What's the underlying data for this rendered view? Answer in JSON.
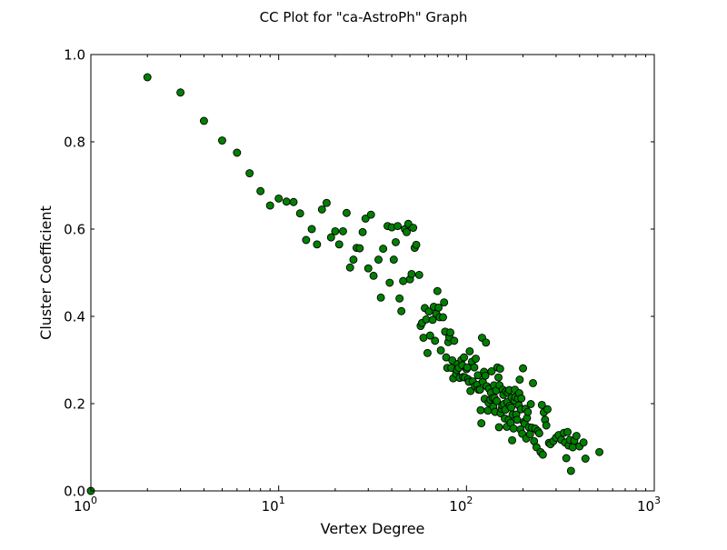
{
  "chart_data": {
    "type": "scatter",
    "title": "CC Plot for \"ca-AstroPh\" Graph",
    "xlabel": "Vertex Degree",
    "ylabel": "Cluster Coefficient",
    "x_scale": "log",
    "xlim": [
      1,
      1000
    ],
    "ylim": [
      0.0,
      1.0
    ],
    "x_ticks": [
      {
        "value": 1,
        "base": "10",
        "exp": "0"
      },
      {
        "value": 10,
        "base": "10",
        "exp": "1"
      },
      {
        "value": 100,
        "base": "10",
        "exp": "2"
      },
      {
        "value": 1000,
        "base": "10",
        "exp": "3"
      }
    ],
    "y_ticks": [
      {
        "value": 0.0,
        "label": "0.0"
      },
      {
        "value": 0.2,
        "label": "0.2"
      },
      {
        "value": 0.4,
        "label": "0.4"
      },
      {
        "value": 0.6,
        "label": "0.6"
      },
      {
        "value": 0.8,
        "label": "0.8"
      },
      {
        "value": 1.0,
        "label": "1.0"
      }
    ],
    "grid": false,
    "marker_color": "#008000",
    "marker_edge_color": "#000000",
    "points": [
      [
        1,
        0.0
      ],
      [
        2,
        0.948
      ],
      [
        3,
        0.913
      ],
      [
        4,
        0.848
      ],
      [
        5,
        0.803
      ],
      [
        6,
        0.775
      ],
      [
        7,
        0.728
      ],
      [
        8,
        0.687
      ],
      [
        9,
        0.654
      ],
      [
        10,
        0.67
      ],
      [
        11,
        0.663
      ],
      [
        12,
        0.662
      ],
      [
        13,
        0.636
      ],
      [
        14,
        0.575
      ],
      [
        15,
        0.6
      ],
      [
        16,
        0.565
      ],
      [
        17,
        0.645
      ],
      [
        18,
        0.66
      ],
      [
        19,
        0.581
      ],
      [
        20,
        0.595
      ],
      [
        21,
        0.565
      ],
      [
        22,
        0.595
      ],
      [
        23,
        0.637
      ],
      [
        24,
        0.512
      ],
      [
        25,
        0.53
      ],
      [
        26,
        0.557
      ],
      [
        27,
        0.556
      ],
      [
        28,
        0.593
      ],
      [
        29,
        0.624
      ],
      [
        30,
        0.51
      ],
      [
        31,
        0.633
      ],
      [
        32,
        0.493
      ],
      [
        34,
        0.53
      ],
      [
        35,
        0.443
      ],
      [
        36,
        0.555
      ],
      [
        38,
        0.607
      ],
      [
        39,
        0.477
      ],
      [
        40,
        0.604
      ],
      [
        41,
        0.53
      ],
      [
        42,
        0.57
      ],
      [
        43,
        0.607
      ],
      [
        44,
        0.441
      ],
      [
        45,
        0.412
      ],
      [
        46,
        0.481
      ],
      [
        47,
        0.6
      ],
      [
        48,
        0.593
      ],
      [
        49,
        0.612
      ],
      [
        50,
        0.485
      ],
      [
        51,
        0.497
      ],
      [
        52,
        0.603
      ],
      [
        53,
        0.557
      ],
      [
        54,
        0.564
      ],
      [
        56,
        0.495
      ],
      [
        57,
        0.378
      ],
      [
        58,
        0.385
      ],
      [
        59,
        0.351
      ],
      [
        60,
        0.419
      ],
      [
        61,
        0.393
      ],
      [
        62,
        0.316
      ],
      [
        63,
        0.411
      ],
      [
        64,
        0.356
      ],
      [
        66,
        0.392
      ],
      [
        67,
        0.422
      ],
      [
        68,
        0.344
      ],
      [
        69,
        0.406
      ],
      [
        70,
        0.458
      ],
      [
        71,
        0.42
      ],
      [
        72,
        0.398
      ],
      [
        73,
        0.322
      ],
      [
        75,
        0.398
      ],
      [
        76,
        0.432
      ],
      [
        77,
        0.365
      ],
      [
        78,
        0.306
      ],
      [
        79,
        0.282
      ],
      [
        80,
        0.341
      ],
      [
        81,
        0.352
      ],
      [
        82,
        0.363
      ],
      [
        83,
        0.282
      ],
      [
        84,
        0.299
      ],
      [
        85,
        0.258
      ],
      [
        86,
        0.344
      ],
      [
        88,
        0.268
      ],
      [
        89,
        0.277
      ],
      [
        90,
        0.291
      ],
      [
        91,
        0.282
      ],
      [
        92,
        0.259
      ],
      [
        94,
        0.3
      ],
      [
        95,
        0.288
      ],
      [
        96,
        0.261
      ],
      [
        97,
        0.306
      ],
      [
        98,
        0.26
      ],
      [
        100,
        0.279
      ],
      [
        101,
        0.283
      ],
      [
        102,
        0.256
      ],
      [
        103,
        0.25
      ],
      [
        104,
        0.32
      ],
      [
        105,
        0.229
      ],
      [
        107,
        0.296
      ],
      [
        108,
        0.251
      ],
      [
        110,
        0.283
      ],
      [
        111,
        0.24
      ],
      [
        112,
        0.303
      ],
      [
        114,
        0.243
      ],
      [
        115,
        0.265
      ],
      [
        116,
        0.232
      ],
      [
        118,
        0.232
      ],
      [
        119,
        0.185
      ],
      [
        120,
        0.155
      ],
      [
        121,
        0.351
      ],
      [
        122,
        0.25
      ],
      [
        124,
        0.273
      ],
      [
        125,
        0.211
      ],
      [
        126,
        0.264
      ],
      [
        127,
        0.34
      ],
      [
        128,
        0.24
      ],
      [
        130,
        0.184
      ],
      [
        131,
        0.202
      ],
      [
        132,
        0.234
      ],
      [
        134,
        0.209
      ],
      [
        135,
        0.225
      ],
      [
        136,
        0.274
      ],
      [
        138,
        0.213
      ],
      [
        139,
        0.193
      ],
      [
        140,
        0.242
      ],
      [
        141,
        0.213
      ],
      [
        142,
        0.181
      ],
      [
        144,
        0.23
      ],
      [
        145,
        0.206
      ],
      [
        146,
        0.283
      ],
      [
        148,
        0.26
      ],
      [
        149,
        0.146
      ],
      [
        150,
        0.242
      ],
      [
        151,
        0.28
      ],
      [
        152,
        0.178
      ],
      [
        154,
        0.188
      ],
      [
        155,
        0.196
      ],
      [
        156,
        0.232
      ],
      [
        157,
        0.22
      ],
      [
        158,
        0.199
      ],
      [
        160,
        0.166
      ],
      [
        161,
        0.186
      ],
      [
        162,
        0.228
      ],
      [
        164,
        0.147
      ],
      [
        165,
        0.204
      ],
      [
        166,
        0.225
      ],
      [
        168,
        0.163
      ],
      [
        169,
        0.231
      ],
      [
        170,
        0.195
      ],
      [
        172,
        0.156
      ],
      [
        173,
        0.191
      ],
      [
        174,
        0.214
      ],
      [
        175,
        0.116
      ],
      [
        176,
        0.175
      ],
      [
        178,
        0.143
      ],
      [
        180,
        0.207
      ],
      [
        181,
        0.232
      ],
      [
        182,
        0.215
      ],
      [
        184,
        0.175
      ],
      [
        186,
        0.163
      ],
      [
        188,
        0.212
      ],
      [
        190,
        0.196
      ],
      [
        191,
        0.224
      ],
      [
        192,
        0.255
      ],
      [
        194,
        0.141
      ],
      [
        195,
        0.187
      ],
      [
        196,
        0.212
      ],
      [
        198,
        0.131
      ],
      [
        200,
        0.281
      ],
      [
        202,
        0.158
      ],
      [
        204,
        0.154
      ],
      [
        206,
        0.188
      ],
      [
        208,
        0.12
      ],
      [
        210,
        0.167
      ],
      [
        212,
        0.181
      ],
      [
        215,
        0.146
      ],
      [
        218,
        0.13
      ],
      [
        220,
        0.199
      ],
      [
        223,
        0.145
      ],
      [
        226,
        0.247
      ],
      [
        229,
        0.114
      ],
      [
        232,
        0.143
      ],
      [
        236,
        0.1
      ],
      [
        240,
        0.137
      ],
      [
        244,
        0.132
      ],
      [
        248,
        0.089
      ],
      [
        252,
        0.197
      ],
      [
        255,
        0.083
      ],
      [
        258,
        0.18
      ],
      [
        262,
        0.163
      ],
      [
        266,
        0.15
      ],
      [
        270,
        0.187
      ],
      [
        275,
        0.11
      ],
      [
        280,
        0.107
      ],
      [
        290,
        0.114
      ],
      [
        300,
        0.122
      ],
      [
        310,
        0.128
      ],
      [
        320,
        0.117
      ],
      [
        330,
        0.133
      ],
      [
        335,
        0.111
      ],
      [
        340,
        0.075
      ],
      [
        345,
        0.135
      ],
      [
        350,
        0.104
      ],
      [
        355,
        0.117
      ],
      [
        360,
        0.046
      ],
      [
        368,
        0.1
      ],
      [
        375,
        0.115
      ],
      [
        385,
        0.126
      ],
      [
        400,
        0.102
      ],
      [
        420,
        0.111
      ],
      [
        430,
        0.074
      ],
      [
        510,
        0.089
      ]
    ]
  }
}
